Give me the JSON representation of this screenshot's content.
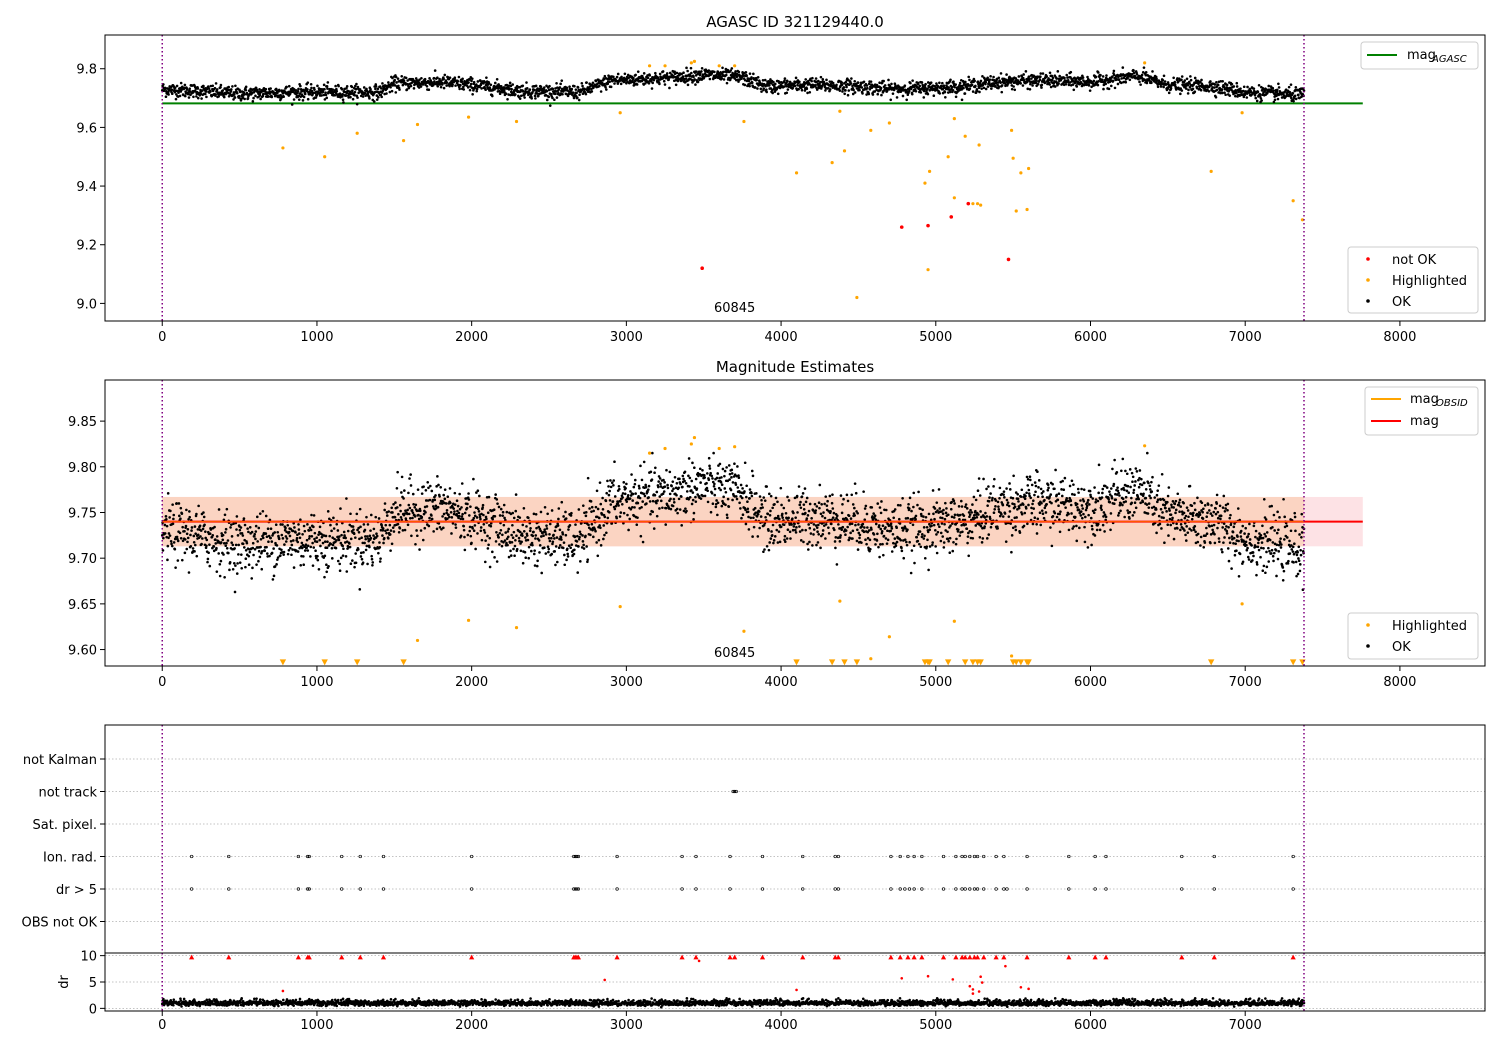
{
  "chart_data": [
    {
      "type": "scatter",
      "title": "AGASC ID 321129440.0",
      "xlim": [
        -370,
        8550
      ],
      "ylim": [
        8.94,
        9.915
      ],
      "xticks": [
        0,
        1000,
        2000,
        3000,
        4000,
        5000,
        6000,
        7000,
        8000
      ],
      "yticks": [
        9.0,
        9.2,
        9.4,
        9.6,
        9.8
      ],
      "ytick_labels": [
        "9.0",
        "9.2",
        "9.4",
        "9.6",
        "9.8"
      ],
      "annotation": "60845",
      "annotation_x": 3700,
      "vlines": [
        0,
        7380
      ],
      "hline": {
        "y": 9.682,
        "x0": 0,
        "x1": 7760,
        "color": "#008000"
      },
      "legend_lines": [
        {
          "label": "mag",
          "sub": "AGASC",
          "color": "#008000"
        }
      ],
      "legend_points": [
        {
          "label": "not OK",
          "color": "#ff0000"
        },
        {
          "label": "Highlighted",
          "color": "#ffa500"
        },
        {
          "label": "OK",
          "color": "#000000"
        }
      ],
      "ok_band": {
        "base": 9.725,
        "offset": 0,
        "noise": 0.012,
        "segments": [
          [
            0,
            9.73
          ],
          [
            200,
            9.725
          ],
          [
            500,
            9.715
          ],
          [
            800,
            9.72
          ],
          [
            1000,
            9.72
          ],
          [
            1400,
            9.72
          ],
          [
            1500,
            9.75
          ],
          [
            1800,
            9.755
          ],
          [
            2100,
            9.74
          ],
          [
            2300,
            9.725
          ],
          [
            2700,
            9.72
          ],
          [
            2900,
            9.76
          ],
          [
            3300,
            9.77
          ],
          [
            3500,
            9.78
          ],
          [
            3750,
            9.77
          ],
          [
            3900,
            9.74
          ],
          [
            4200,
            9.745
          ],
          [
            4500,
            9.74
          ],
          [
            4700,
            9.73
          ],
          [
            5000,
            9.735
          ],
          [
            5200,
            9.74
          ],
          [
            5400,
            9.755
          ],
          [
            5700,
            9.76
          ],
          [
            6000,
            9.755
          ],
          [
            6300,
            9.775
          ],
          [
            6500,
            9.745
          ],
          [
            6800,
            9.74
          ],
          [
            7000,
            9.72
          ],
          [
            7380,
            9.71
          ]
        ]
      },
      "highlighted": [
        [
          780,
          9.53
        ],
        [
          1050,
          9.5
        ],
        [
          1260,
          9.58
        ],
        [
          1560,
          9.555
        ],
        [
          1650,
          9.61
        ],
        [
          1980,
          9.635
        ],
        [
          2290,
          9.62
        ],
        [
          2960,
          9.65
        ],
        [
          3760,
          9.62
        ],
        [
          4100,
          9.445
        ],
        [
          4330,
          9.48
        ],
        [
          4380,
          9.655
        ],
        [
          4410,
          9.52
        ],
        [
          4490,
          9.02
        ],
        [
          4580,
          9.59
        ],
        [
          4700,
          9.615
        ],
        [
          4930,
          9.41
        ],
        [
          4950,
          9.115
        ],
        [
          4960,
          9.45
        ],
        [
          5080,
          9.5
        ],
        [
          5120,
          9.63
        ],
        [
          5120,
          9.36
        ],
        [
          5190,
          9.57
        ],
        [
          5240,
          9.34
        ],
        [
          5270,
          9.34
        ],
        [
          5280,
          9.54
        ],
        [
          5290,
          9.335
        ],
        [
          5490,
          9.59
        ],
        [
          5500,
          9.495
        ],
        [
          5520,
          9.315
        ],
        [
          5550,
          9.445
        ],
        [
          5590,
          9.32
        ],
        [
          5600,
          9.46
        ],
        [
          6780,
          9.45
        ],
        [
          6980,
          9.65
        ],
        [
          7310,
          9.35
        ],
        [
          7370,
          9.285
        ],
        [
          3150,
          9.81
        ],
        [
          3250,
          9.81
        ],
        [
          3420,
          9.82
        ],
        [
          3440,
          9.825
        ],
        [
          3600,
          9.81
        ],
        [
          3700,
          9.81
        ],
        [
          6350,
          9.82
        ]
      ],
      "not_ok": [
        [
          3490,
          9.12
        ],
        [
          4780,
          9.26
        ],
        [
          4950,
          9.265
        ],
        [
          5100,
          9.295
        ],
        [
          5210,
          9.34
        ],
        [
          5470,
          9.15
        ]
      ]
    },
    {
      "type": "scatter",
      "title": "Magnitude Estimates",
      "xlim": [
        -370,
        8550
      ],
      "ylim": [
        9.582,
        9.895
      ],
      "xticks": [
        0,
        1000,
        2000,
        3000,
        4000,
        5000,
        6000,
        7000,
        8000
      ],
      "yticks": [
        9.6,
        9.65,
        9.7,
        9.75,
        9.8,
        9.85
      ],
      "ytick_labels": [
        "9.60",
        "9.65",
        "9.70",
        "9.75",
        "9.80",
        "9.85"
      ],
      "annotation": "60845",
      "annotation_x": 3700,
      "vlines": [
        0,
        7380
      ],
      "hline": {
        "y": 9.74,
        "x0": 0,
        "x1": 7760,
        "color": "#ff0000"
      },
      "band": {
        "y0": 9.713,
        "y1": 9.767,
        "x0": 0,
        "x1": 7760,
        "fill_inner": "#fbd4c2",
        "fill_outer": "#fde2e5",
        "x_inner_end": 7380
      },
      "obsid_line": {
        "y": 9.74,
        "x0": 0,
        "x1": 7380,
        "color": "#ffa500"
      },
      "legend_lines": [
        {
          "label": "mag",
          "sub": "OBSID",
          "color": "#ffa500"
        },
        {
          "label": "mag",
          "sub": "",
          "color": "#ff0000"
        }
      ],
      "legend_points": [
        {
          "label": "Highlighted",
          "color": "#ffa500"
        },
        {
          "label": "OK",
          "color": "#000000"
        }
      ],
      "ok_band": {
        "base": 9.725,
        "offset": 0,
        "noise": 0.016,
        "segments": [
          [
            0,
            9.73
          ],
          [
            200,
            9.725
          ],
          [
            500,
            9.715
          ],
          [
            800,
            9.72
          ],
          [
            1000,
            9.72
          ],
          [
            1400,
            9.72
          ],
          [
            1500,
            9.75
          ],
          [
            1800,
            9.755
          ],
          [
            2100,
            9.74
          ],
          [
            2300,
            9.725
          ],
          [
            2700,
            9.72
          ],
          [
            2900,
            9.76
          ],
          [
            3300,
            9.77
          ],
          [
            3500,
            9.78
          ],
          [
            3750,
            9.77
          ],
          [
            3900,
            9.74
          ],
          [
            4200,
            9.745
          ],
          [
            4500,
            9.74
          ],
          [
            4700,
            9.73
          ],
          [
            5000,
            9.735
          ],
          [
            5200,
            9.74
          ],
          [
            5400,
            9.755
          ],
          [
            5700,
            9.76
          ],
          [
            6000,
            9.755
          ],
          [
            6300,
            9.775
          ],
          [
            6500,
            9.745
          ],
          [
            6800,
            9.74
          ],
          [
            7000,
            9.72
          ],
          [
            7380,
            9.71
          ]
        ]
      },
      "highlighted": [
        [
          1650,
          9.61
        ],
        [
          1980,
          9.632
        ],
        [
          2290,
          9.624
        ],
        [
          2960,
          9.647
        ],
        [
          3760,
          9.62
        ],
        [
          4380,
          9.653
        ],
        [
          4580,
          9.59
        ],
        [
          4700,
          9.614
        ],
        [
          5120,
          9.631
        ],
        [
          5490,
          9.593
        ],
        [
          6980,
          9.65
        ],
        [
          3150,
          9.815
        ],
        [
          3250,
          9.82
        ],
        [
          3420,
          9.825
        ],
        [
          3440,
          9.832
        ],
        [
          3600,
          9.82
        ],
        [
          3700,
          9.822
        ],
        [
          6350,
          9.823
        ]
      ],
      "triangles_x": [
        780,
        1050,
        1260,
        1560,
        4100,
        4330,
        4410,
        4490,
        4930,
        4950,
        4960,
        5080,
        5190,
        5240,
        5270,
        5290,
        5500,
        5520,
        5550,
        5590,
        5600,
        6780,
        7310,
        7370
      ],
      "triangle_y": 9.586
    },
    {
      "type": "scatter",
      "title": "",
      "xlim": [
        -370,
        8550
      ],
      "vlines": [
        0,
        7380
      ],
      "flag_rows": [
        "not Kalman",
        "not track",
        "Sat. pixel.",
        "Ion. rad.",
        "dr > 5",
        "OBS not OK"
      ],
      "flag_points": {
        "not track": [
          3690,
          3700,
          3710
        ],
        "Ion. rad.": [
          190,
          430,
          880,
          940,
          950,
          1160,
          1280,
          1430,
          2000,
          2660,
          2670,
          2680,
          2690,
          2940,
          3360,
          3450,
          3670,
          3880,
          4140,
          4350,
          4370,
          4710,
          4770,
          4820,
          4860,
          4910,
          5050,
          5130,
          5170,
          5190,
          5220,
          5250,
          5270,
          5310,
          5390,
          5440,
          5590,
          5860,
          6030,
          6100,
          6590,
          6800,
          7310
        ],
        "dr > 5": [
          190,
          430,
          880,
          940,
          950,
          1160,
          1280,
          1430,
          2000,
          2660,
          2670,
          2680,
          2690,
          2940,
          3360,
          3450,
          3670,
          3880,
          4140,
          4350,
          4370,
          4710,
          4770,
          4800,
          4830,
          4860,
          4910,
          5050,
          5130,
          5170,
          5190,
          5220,
          5250,
          5270,
          5310,
          5390,
          5440,
          5460,
          5590,
          5860,
          6030,
          6100,
          6590,
          6800,
          7310
        ]
      }
    },
    {
      "type": "scatter",
      "title": "",
      "xlim": [
        -370,
        8550
      ],
      "ylim": [
        -0.5,
        10.5
      ],
      "ylabel": "dr",
      "xticks": [
        0,
        1000,
        2000,
        3000,
        4000,
        5000,
        6000,
        7000
      ],
      "yticks": [
        0,
        5,
        10
      ],
      "ytick_labels": [
        "0",
        "5",
        "10"
      ],
      "vlines": [
        0,
        7380
      ],
      "dr_base": {
        "mean": 0.7,
        "noise": 0.5
      },
      "dr_triangles": [
        190,
        430,
        880,
        940,
        950,
        1160,
        1280,
        1430,
        2000,
        2660,
        2670,
        2680,
        2690,
        2940,
        3360,
        3450,
        3670,
        3700,
        3880,
        4140,
        4350,
        4370,
        4710,
        4770,
        4820,
        4860,
        4910,
        5050,
        5130,
        5170,
        5190,
        5220,
        5250,
        5270,
        5310,
        5390,
        5440,
        5590,
        5860,
        6030,
        6100,
        6590,
        6800,
        7310
      ],
      "dr_outliers": [
        [
          780,
          3.3
        ],
        [
          2860,
          5.4
        ],
        [
          3470,
          9
        ],
        [
          4100,
          3.5
        ],
        [
          4780,
          5.7
        ],
        [
          4950,
          6.1
        ],
        [
          5110,
          5.5
        ],
        [
          5220,
          4.2
        ],
        [
          5240,
          3.6
        ],
        [
          5280,
          3.2
        ],
        [
          5290,
          6
        ],
        [
          5300,
          4.9
        ],
        [
          5450,
          8
        ],
        [
          5550,
          4
        ],
        [
          5600,
          3.7
        ],
        [
          5240,
          2.8
        ]
      ]
    }
  ]
}
